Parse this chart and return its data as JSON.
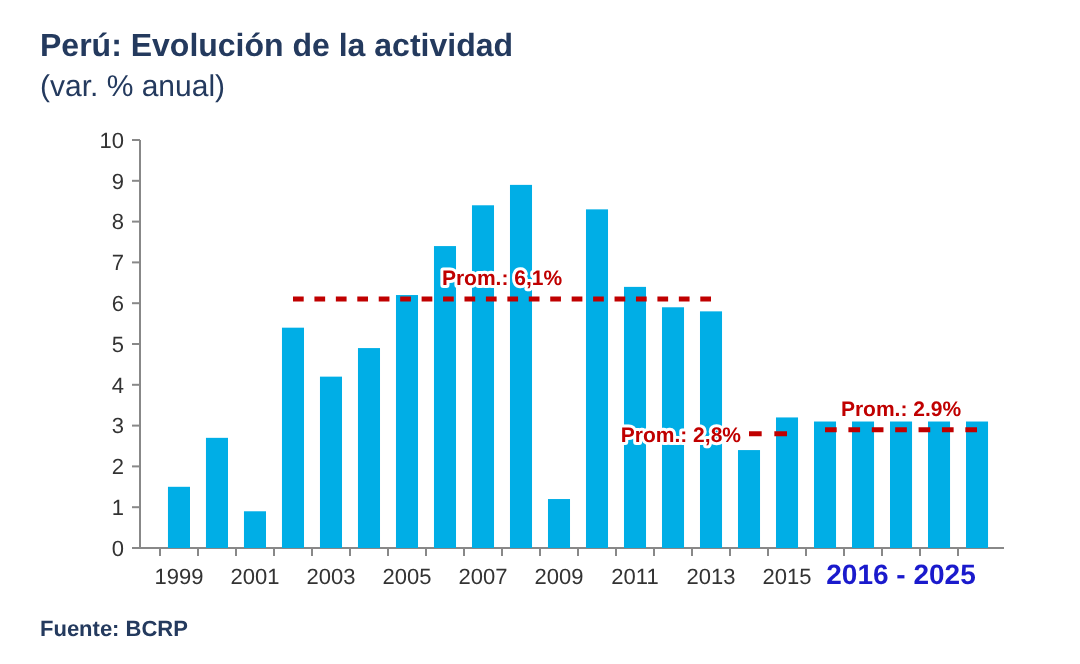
{
  "chart_data": {
    "type": "bar",
    "title": "Perú: Evolución de la actividad",
    "subtitle": "(var. % anual)",
    "categories": [
      "1999",
      null,
      "2001",
      null,
      "2003",
      null,
      "2005",
      null,
      "2007",
      null,
      "2009",
      null,
      "2011",
      null,
      "2013",
      null,
      "2015",
      null,
      null,
      "2016 - 2025",
      null,
      null
    ],
    "series": [
      {
        "color": "#00aee6",
        "values": [
          1.5,
          2.7,
          0.9,
          5.4,
          4.2,
          4.9,
          6.2,
          7.4,
          8.4,
          8.9,
          1.2,
          8.3,
          6.4,
          5.9,
          5.8,
          2.4,
          3.2,
          3.1,
          3.1,
          3.1,
          3.1,
          3.1
        ]
      },
      {
        "type": "line",
        "name": "Prom.: 6,1%",
        "color": "#c00000",
        "line_style": "dashed",
        "marker": "none",
        "values": [
          null,
          null,
          null,
          6.1,
          6.1,
          6.1,
          6.1,
          6.1,
          6.1,
          6.1,
          6.1,
          6.1,
          6.1,
          6.1,
          6.1,
          null,
          null,
          null,
          null,
          null,
          null,
          null
        ]
      },
      {
        "type": "line",
        "name": "Prom.: 2,8%",
        "color": "#c00000",
        "line_style": "dashed",
        "marker": "none",
        "values": [
          null,
          null,
          null,
          null,
          null,
          null,
          null,
          null,
          null,
          null,
          null,
          null,
          null,
          null,
          null,
          2.8,
          2.8,
          null,
          null,
          null,
          null,
          null
        ]
      },
      {
        "type": "line",
        "name": "Prom.: 2.9%",
        "color": "#c00000",
        "line_style": "dashed",
        "marker": "none",
        "values": [
          null,
          null,
          null,
          null,
          null,
          null,
          null,
          null,
          null,
          null,
          null,
          null,
          null,
          null,
          null,
          null,
          null,
          2.9,
          2.9,
          2.9,
          2.9,
          2.9
        ]
      }
    ],
    "ylim": [
      0,
      10
    ],
    "yticks": [
      0,
      1,
      2,
      3,
      4,
      5,
      6,
      7,
      8,
      9,
      10
    ],
    "grid": false,
    "legend": false,
    "annotations": [
      "Fuente: BCRP"
    ]
  }
}
